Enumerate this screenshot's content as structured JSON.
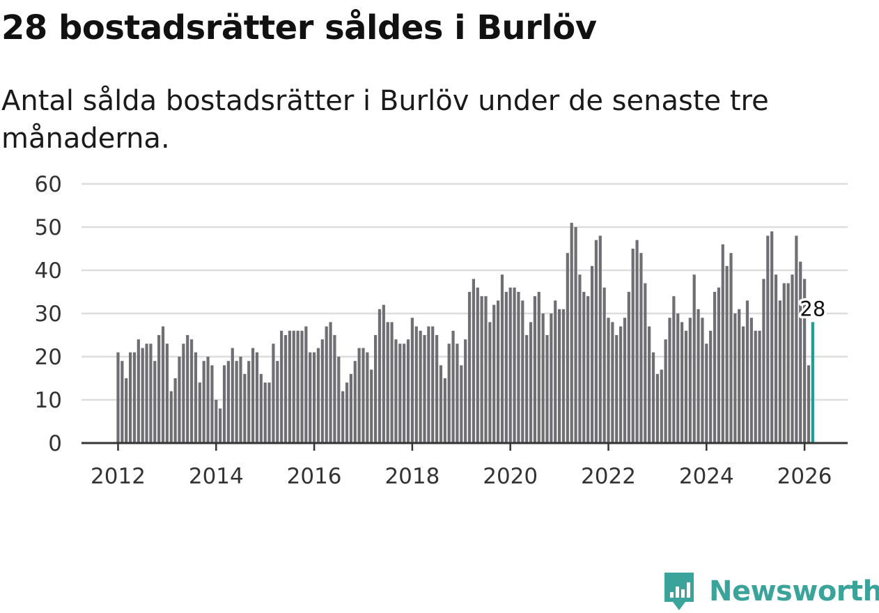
{
  "title": "28 bostadsrätter såldes i Burlöv",
  "subtitle": "Antal sålda bostadsrätter i Burlöv under de senaste tre månaderna.",
  "brand": "Newsworthy",
  "colors": {
    "bar": "#6e6e73",
    "highlight": "#1a9e96",
    "grid": "#dddddd",
    "axis": "#333333",
    "brand": "#3aa39a"
  },
  "chart_data": {
    "type": "bar",
    "title": "28 bostadsrätter såldes i Burlöv",
    "subtitle": "Antal sålda bostadsrätter i Burlöv under de senaste tre månaderna.",
    "xlabel": "",
    "ylabel": "",
    "ylim": [
      0,
      60
    ],
    "yticks": [
      0,
      10,
      20,
      30,
      40,
      50,
      60
    ],
    "xticks": [
      "2012",
      "2014",
      "2016",
      "2018",
      "2020",
      "2022",
      "2024",
      "2026"
    ],
    "start": "2012-01",
    "frequency": "monthly",
    "grid": true,
    "highlight_label": "28",
    "values": [
      21,
      19,
      15,
      21,
      21,
      24,
      22,
      23,
      23,
      19,
      25,
      27,
      23,
      12,
      15,
      20,
      23,
      25,
      24,
      21,
      14,
      19,
      20,
      18,
      10,
      8,
      18,
      19,
      22,
      19,
      20,
      16,
      19,
      22,
      21,
      16,
      14,
      14,
      23,
      19,
      26,
      25,
      26,
      26,
      26,
      26,
      27,
      21,
      21,
      22,
      24,
      27,
      28,
      25,
      20,
      12,
      14,
      16,
      19,
      22,
      22,
      21,
      17,
      25,
      31,
      32,
      28,
      28,
      24,
      23,
      23,
      24,
      29,
      27,
      26,
      25,
      27,
      27,
      25,
      18,
      15,
      23,
      26,
      23,
      18,
      24,
      35,
      38,
      36,
      34,
      34,
      28,
      32,
      33,
      39,
      35,
      36,
      36,
      35,
      33,
      25,
      28,
      34,
      35,
      30,
      25,
      30,
      33,
      31,
      31,
      44,
      51,
      50,
      39,
      35,
      34,
      41,
      47,
      48,
      36,
      29,
      28,
      25,
      27,
      29,
      35,
      45,
      47,
      44,
      37,
      27,
      21,
      16,
      17,
      24,
      29,
      34,
      30,
      28,
      26,
      29,
      39,
      31,
      29,
      23,
      26,
      35,
      36,
      46,
      41,
      44,
      30,
      31,
      27,
      33,
      29,
      26,
      26,
      38,
      48,
      49,
      39,
      33,
      37,
      37,
      39,
      48,
      42,
      38,
      18,
      28
    ]
  }
}
